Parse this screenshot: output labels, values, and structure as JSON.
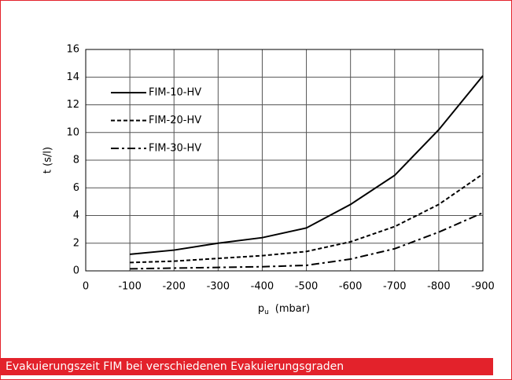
{
  "chart_data": {
    "type": "line",
    "caption": "Evakuierungszeit FIM bei verschiedenen Evakuierungsgraden",
    "y_label": "t (s/l)",
    "x_label": {
      "main": "p",
      "sub": "u",
      "unit": "(mbar)"
    },
    "categories": [
      "0",
      "-100",
      "-200",
      "-300",
      "-400",
      "-500",
      "-600",
      "-700",
      "-800",
      "-900"
    ],
    "series": [
      {
        "name": "FIM-10-HV",
        "color": "#000000",
        "dash": "solid",
        "values": [
          null,
          1.2,
          1.5,
          2.0,
          2.4,
          3.1,
          4.8,
          6.9,
          10.2,
          14.1
        ]
      },
      {
        "name": "FIM-20-HV",
        "color": "#000000",
        "dash": "dashed",
        "values": [
          null,
          0.6,
          0.7,
          0.9,
          1.1,
          1.4,
          2.1,
          3.2,
          4.8,
          7.0
        ]
      },
      {
        "name": "FIM-30-HV",
        "color": "#000000",
        "dash": "dashdot",
        "values": [
          null,
          0.15,
          0.2,
          0.25,
          0.3,
          0.4,
          0.85,
          1.6,
          2.8,
          4.2
        ]
      }
    ],
    "ylim": [
      0,
      16
    ],
    "yticks": [
      0,
      2,
      4,
      6,
      8,
      10,
      12,
      14,
      16
    ],
    "grid": true,
    "legend": "upper left"
  }
}
